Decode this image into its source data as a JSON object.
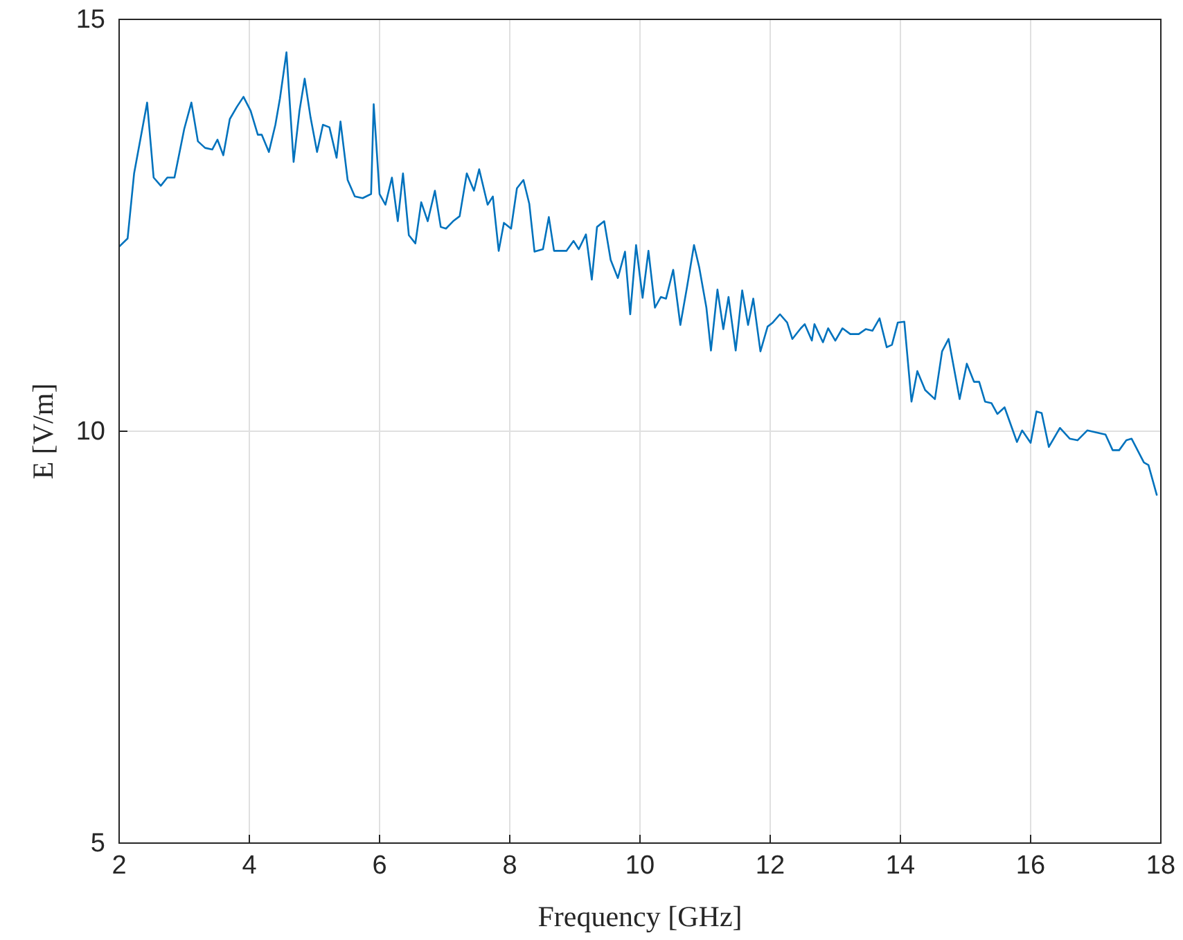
{
  "chart_data": {
    "type": "line",
    "xlabel": "Frequency [GHz]",
    "ylabel": "E [V/m]",
    "xlim": [
      2,
      18
    ],
    "xticks": [
      2,
      4,
      6,
      8,
      10,
      12,
      14,
      16,
      18
    ],
    "ylim": [
      5,
      15
    ],
    "yticks": [
      5,
      10,
      15
    ],
    "grid": true,
    "marker": "none",
    "line_style": "solid",
    "series": [
      {
        "color": "#0072bd",
        "x": [
          2.0,
          2.13,
          2.23,
          2.43,
          2.53,
          2.64,
          2.74,
          2.85,
          3.0,
          3.11,
          3.21,
          3.32,
          3.43,
          3.51,
          3.6,
          3.7,
          3.81,
          3.91,
          4.02,
          4.13,
          4.19,
          4.3,
          4.4,
          4.47,
          4.57,
          4.68,
          4.77,
          4.85,
          4.94,
          5.04,
          5.13,
          5.23,
          5.34,
          5.4,
          5.51,
          5.62,
          5.74,
          5.87,
          5.91,
          6.0,
          6.09,
          6.19,
          6.28,
          6.36,
          6.45,
          6.55,
          6.64,
          6.74,
          6.85,
          6.94,
          7.02,
          7.13,
          7.23,
          7.34,
          7.45,
          7.53,
          7.66,
          7.74,
          7.83,
          7.91,
          8.02,
          8.11,
          8.21,
          8.3,
          8.38,
          8.51,
          8.6,
          8.68,
          8.87,
          8.98,
          9.06,
          9.17,
          9.26,
          9.34,
          9.45,
          9.55,
          9.66,
          9.77,
          9.85,
          9.94,
          10.04,
          10.13,
          10.23,
          10.32,
          10.4,
          10.51,
          10.62,
          10.72,
          10.83,
          10.91,
          11.02,
          11.09,
          11.19,
          11.28,
          11.36,
          11.47,
          11.57,
          11.66,
          11.74,
          11.85,
          11.96,
          12.04,
          12.15,
          12.26,
          12.34,
          12.47,
          12.53,
          12.64,
          12.68,
          12.81,
          12.89,
          13.0,
          13.11,
          13.23,
          13.36,
          13.47,
          13.57,
          13.68,
          13.79,
          13.87,
          13.96,
          14.06,
          14.17,
          14.26,
          14.38,
          14.53,
          14.64,
          14.74,
          14.91,
          15.02,
          15.13,
          15.21,
          15.3,
          15.4,
          15.49,
          15.6,
          15.79,
          15.87,
          16.0,
          16.09,
          16.17,
          16.28,
          16.45,
          16.6,
          16.72,
          16.87,
          17.09,
          17.15,
          17.26,
          17.36,
          17.47,
          17.55,
          17.74,
          17.81,
          17.94
        ],
        "values": [
          12.24,
          12.34,
          13.13,
          13.99,
          13.08,
          12.98,
          13.08,
          13.08,
          13.67,
          13.99,
          13.52,
          13.44,
          13.42,
          13.54,
          13.35,
          13.79,
          13.94,
          14.06,
          13.89,
          13.6,
          13.6,
          13.39,
          13.72,
          14.04,
          14.6,
          13.27,
          13.89,
          14.28,
          13.81,
          13.39,
          13.72,
          13.69,
          13.32,
          13.76,
          13.05,
          12.85,
          12.83,
          12.88,
          13.97,
          12.88,
          12.75,
          13.08,
          12.55,
          13.13,
          12.38,
          12.28,
          12.78,
          12.55,
          12.92,
          12.48,
          12.46,
          12.55,
          12.61,
          13.13,
          12.92,
          13.18,
          12.75,
          12.85,
          12.19,
          12.53,
          12.46,
          12.95,
          13.05,
          12.76,
          12.18,
          12.21,
          12.6,
          12.19,
          12.19,
          12.31,
          12.21,
          12.39,
          11.84,
          12.48,
          12.55,
          12.08,
          11.86,
          12.18,
          11.42,
          12.26,
          11.62,
          12.19,
          11.5,
          11.63,
          11.61,
          11.96,
          11.29,
          11.74,
          12.26,
          11.99,
          11.5,
          10.98,
          11.72,
          11.24,
          11.63,
          10.98,
          11.71,
          11.29,
          11.61,
          10.97,
          11.27,
          11.32,
          11.42,
          11.32,
          11.12,
          11.25,
          11.3,
          11.1,
          11.3,
          11.08,
          11.25,
          11.1,
          11.25,
          11.18,
          11.18,
          11.24,
          11.22,
          11.37,
          11.02,
          11.05,
          11.32,
          11.33,
          10.36,
          10.73,
          10.5,
          10.39,
          10.97,
          11.12,
          10.39,
          10.82,
          10.6,
          10.6,
          10.36,
          10.34,
          10.21,
          10.29,
          9.87,
          10.01,
          9.86,
          10.24,
          10.22,
          9.81,
          10.04,
          9.91,
          9.89,
          10.01,
          9.97,
          9.96,
          9.77,
          9.77,
          9.89,
          9.91,
          9.62,
          9.59,
          9.22
        ]
      }
    ]
  }
}
